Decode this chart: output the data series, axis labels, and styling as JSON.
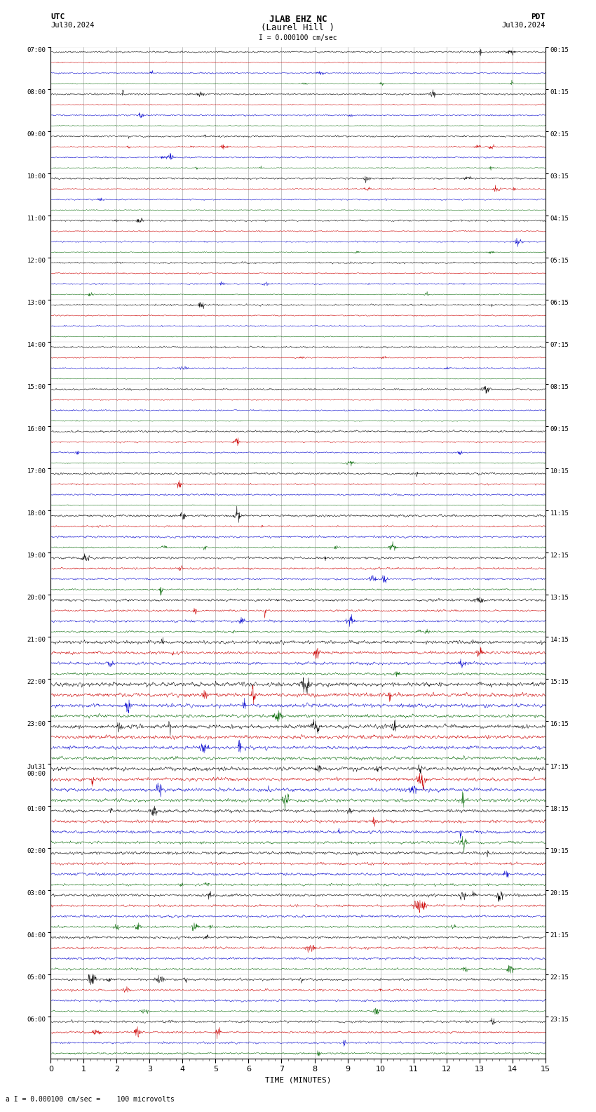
{
  "title_line1": "JLAB EHZ NC",
  "title_line2": "(Laurel Hill )",
  "scale_label": "I = 0.000100 cm/sec",
  "bottom_label": "a I = 0.000100 cm/sec =    100 microvolts",
  "left_label_top": "UTC",
  "left_label_date": "Jul30,2024",
  "right_label_top": "PDT",
  "right_label_date": "Jul30,2024",
  "xlabel": "TIME (MINUTES)",
  "xmin": 0,
  "xmax": 15,
  "xticks_major": [
    0,
    1,
    2,
    3,
    4,
    5,
    6,
    7,
    8,
    9,
    10,
    11,
    12,
    13,
    14,
    15
  ],
  "background_color": "#ffffff",
  "grid_color": "#999999",
  "trace_colors": [
    "#000000",
    "#cc0000",
    "#0000cc",
    "#006600"
  ],
  "n_points": 1800,
  "noise_seed": 42,
  "row_groups": [
    {
      "label_left": "07:00",
      "label_right": "00:15",
      "noise_amps": [
        0.06,
        0.04,
        0.05,
        0.03
      ]
    },
    {
      "label_left": "08:00",
      "label_right": "01:15",
      "noise_amps": [
        0.06,
        0.04,
        0.05,
        0.03
      ]
    },
    {
      "label_left": "09:00",
      "label_right": "02:15",
      "noise_amps": [
        0.06,
        0.04,
        0.05,
        0.03
      ]
    },
    {
      "label_left": "10:00",
      "label_right": "03:15",
      "noise_amps": [
        0.06,
        0.04,
        0.05,
        0.03
      ]
    },
    {
      "label_left": "11:00",
      "label_right": "04:15",
      "noise_amps": [
        0.06,
        0.04,
        0.05,
        0.03
      ]
    },
    {
      "label_left": "12:00",
      "label_right": "05:15",
      "noise_amps": [
        0.06,
        0.04,
        0.05,
        0.03
      ]
    },
    {
      "label_left": "13:00",
      "label_right": "06:15",
      "noise_amps": [
        0.06,
        0.04,
        0.05,
        0.03
      ]
    },
    {
      "label_left": "14:00",
      "label_right": "07:15",
      "noise_amps": [
        0.06,
        0.04,
        0.05,
        0.03
      ]
    },
    {
      "label_left": "15:00",
      "label_right": "08:15",
      "noise_amps": [
        0.06,
        0.04,
        0.05,
        0.03
      ]
    },
    {
      "label_left": "16:00",
      "label_right": "09:15",
      "noise_amps": [
        0.07,
        0.05,
        0.05,
        0.03
      ]
    },
    {
      "label_left": "17:00",
      "label_right": "10:15",
      "noise_amps": [
        0.07,
        0.05,
        0.06,
        0.03
      ]
    },
    {
      "label_left": "18:00",
      "label_right": "11:15",
      "noise_amps": [
        0.08,
        0.06,
        0.07,
        0.05
      ]
    },
    {
      "label_left": "19:00",
      "label_right": "12:15",
      "noise_amps": [
        0.08,
        0.07,
        0.07,
        0.06
      ]
    },
    {
      "label_left": "20:00",
      "label_right": "13:15",
      "noise_amps": [
        0.09,
        0.07,
        0.08,
        0.06
      ]
    },
    {
      "label_left": "21:00",
      "label_right": "14:15",
      "noise_amps": [
        0.12,
        0.1,
        0.1,
        0.08
      ]
    },
    {
      "label_left": "22:00",
      "label_right": "15:15",
      "noise_amps": [
        0.15,
        0.14,
        0.13,
        0.11
      ]
    },
    {
      "label_left": "23:00",
      "label_right": "16:15",
      "noise_amps": [
        0.14,
        0.13,
        0.12,
        0.11
      ]
    },
    {
      "label_left": "Jul31\n00:00",
      "label_right": "17:15",
      "noise_amps": [
        0.13,
        0.12,
        0.12,
        0.11
      ]
    },
    {
      "label_left": "01:00",
      "label_right": "18:15",
      "noise_amps": [
        0.11,
        0.1,
        0.1,
        0.09
      ]
    },
    {
      "label_left": "02:00",
      "label_right": "19:15",
      "noise_amps": [
        0.1,
        0.09,
        0.09,
        0.08
      ]
    },
    {
      "label_left": "03:00",
      "label_right": "20:15",
      "noise_amps": [
        0.09,
        0.08,
        0.08,
        0.07
      ]
    },
    {
      "label_left": "04:00",
      "label_right": "21:15",
      "noise_amps": [
        0.09,
        0.08,
        0.08,
        0.07
      ]
    },
    {
      "label_left": "05:00",
      "label_right": "22:15",
      "noise_amps": [
        0.08,
        0.07,
        0.07,
        0.06
      ]
    },
    {
      "label_left": "06:00",
      "label_right": "23:15",
      "noise_amps": [
        0.08,
        0.07,
        0.07,
        0.06
      ]
    }
  ]
}
